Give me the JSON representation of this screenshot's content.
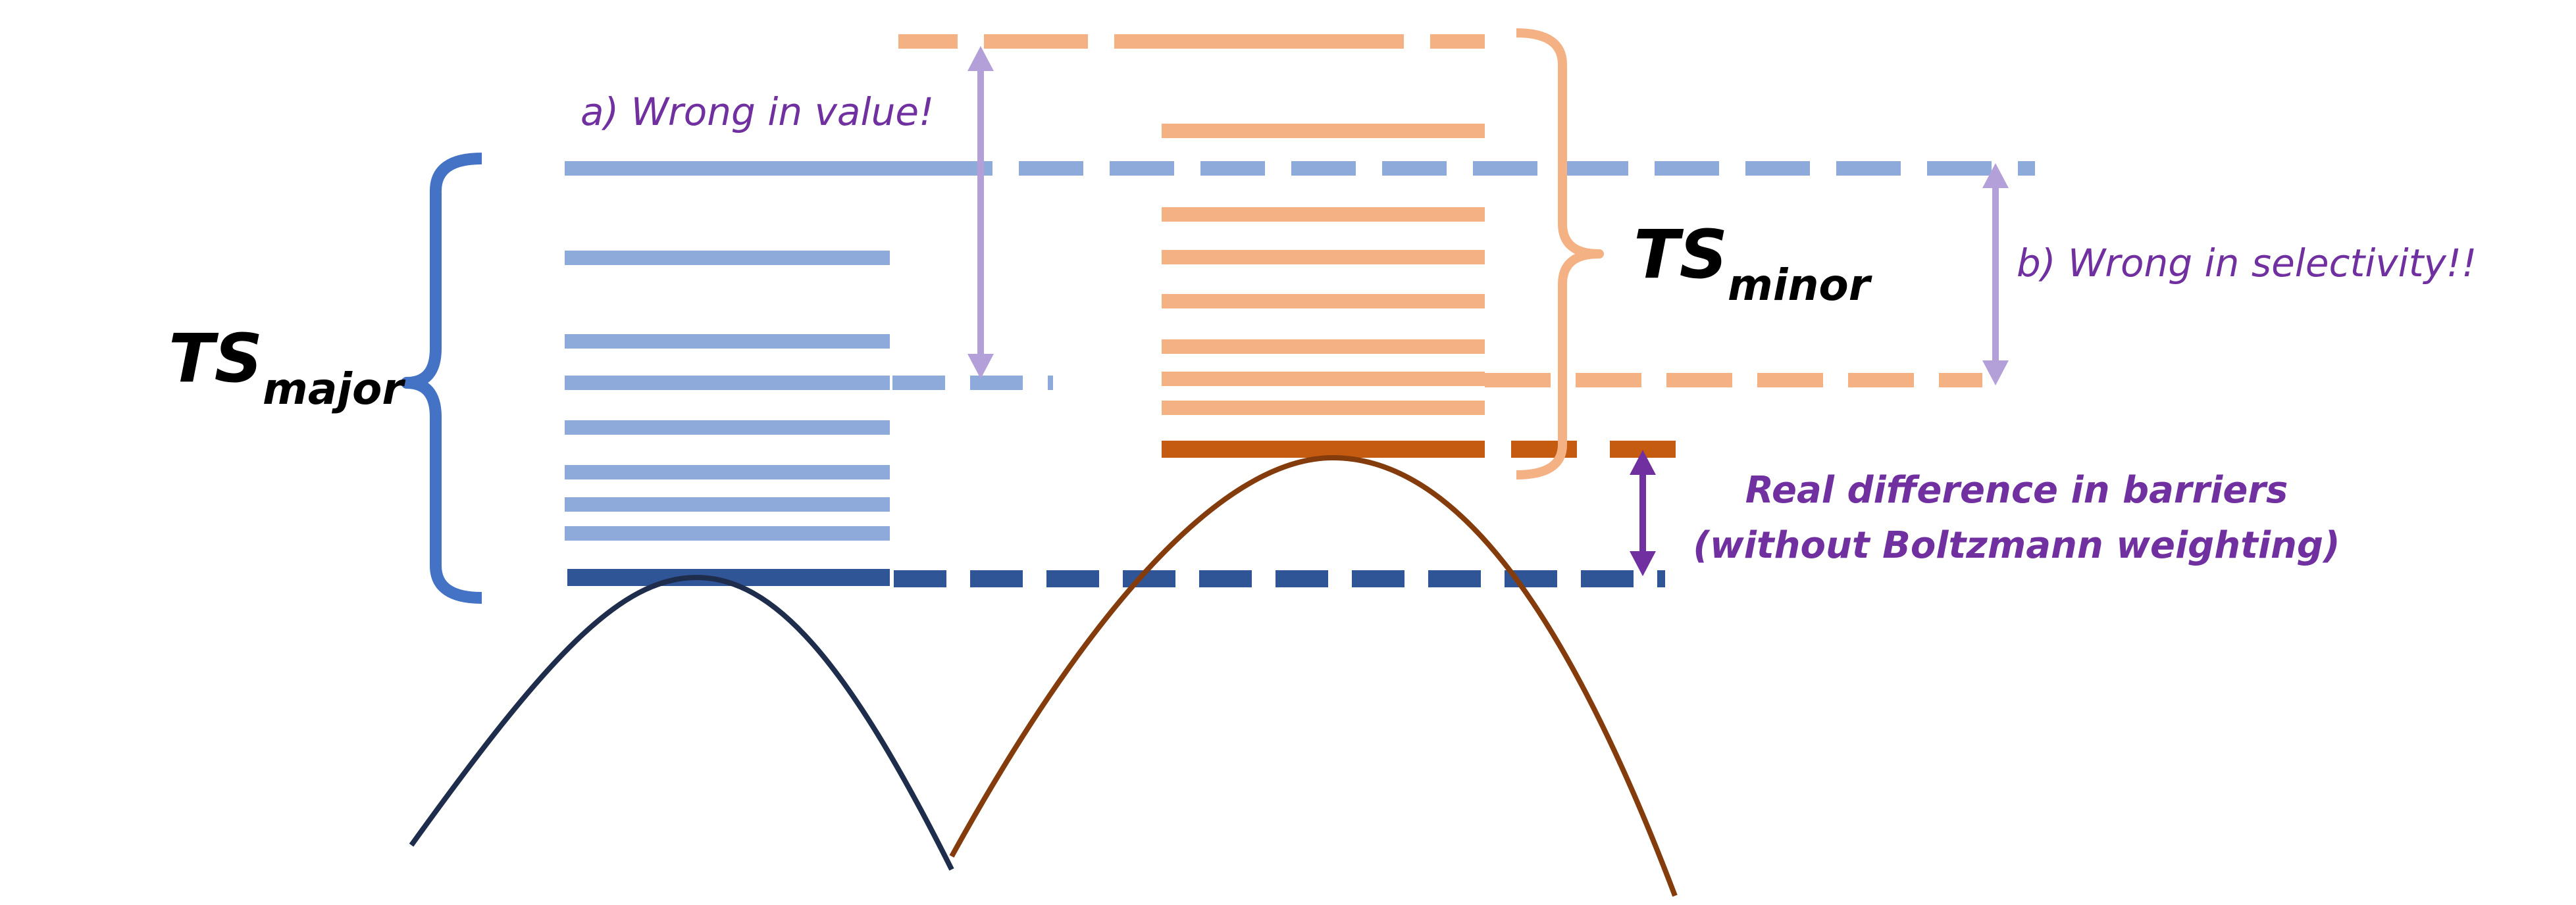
{
  "labels": {
    "ts_major": {
      "main": "TS",
      "sub": "major"
    },
    "ts_minor": {
      "main": "TS",
      "sub": "minor"
    },
    "wrong_value": "a) Wrong in value!",
    "wrong_selectivity": "b) Wrong in selectivity!!",
    "real_difference_line1": "Real difference in barriers",
    "real_difference_line2": "(without Boltzmann weighting)"
  },
  "colors": {
    "major_levels": "#8eaadb",
    "major_lowest": "#2f5597",
    "major_brace": "#4472c4",
    "major_curve": "#1f2d4d",
    "minor_levels": "#f4b183",
    "minor_lowest": "#c55a11",
    "minor_curve": "#843c0c",
    "annotation_light": "#b4a0d8",
    "annotation_dark": "#7030a0",
    "label_black": "#000000"
  }
}
